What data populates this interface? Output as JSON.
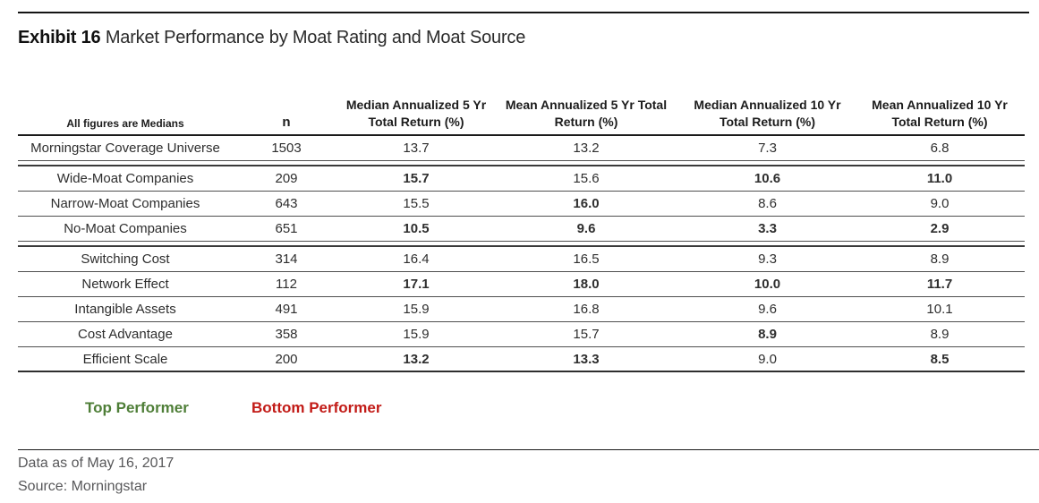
{
  "title": {
    "exhibit_label": "Exhibit 16",
    "text": " Market Performance by Moat Rating and Moat Source"
  },
  "colors": {
    "top_performer_green": "#4E7E37",
    "bottom_performer_red": "#C21B17"
  },
  "table": {
    "corner_note": "All figures are Medians",
    "n_header": "n",
    "columns": [
      {
        "l1": "Median Annualized 5 Yr",
        "l2": "Total Return (%)"
      },
      {
        "l1": "Mean Annualized 5 Yr Total",
        "l2": "Return (%)"
      },
      {
        "l1": "Median Annualized 10 Yr",
        "l2": "Total Return (%)"
      },
      {
        "l1": "Mean Annualized 10 Yr",
        "l2": "Total Return (%)"
      }
    ],
    "rows": [
      {
        "label": "Morningstar Coverage Universe",
        "n": "1503",
        "values": [
          {
            "v": "13.7",
            "hl": ""
          },
          {
            "v": "13.2",
            "hl": ""
          },
          {
            "v": "7.3",
            "hl": ""
          },
          {
            "v": "6.8",
            "hl": ""
          }
        ]
      },
      {
        "label": "Wide-Moat Companies",
        "n": "209",
        "values": [
          {
            "v": "15.7",
            "hl": "top"
          },
          {
            "v": "15.6",
            "hl": ""
          },
          {
            "v": "10.6",
            "hl": "top"
          },
          {
            "v": "11.0",
            "hl": "top"
          }
        ]
      },
      {
        "label": "Narrow-Moat Companies",
        "n": "643",
        "values": [
          {
            "v": "15.5",
            "hl": ""
          },
          {
            "v": "16.0",
            "hl": "top"
          },
          {
            "v": "8.6",
            "hl": ""
          },
          {
            "v": "9.0",
            "hl": ""
          }
        ]
      },
      {
        "label": "No-Moat Companies",
        "n": "651",
        "values": [
          {
            "v": "10.5",
            "hl": "bottom"
          },
          {
            "v": "9.6",
            "hl": "bottom"
          },
          {
            "v": "3.3",
            "hl": "bottom"
          },
          {
            "v": "2.9",
            "hl": "bottom"
          }
        ]
      },
      {
        "label": "Switching Cost",
        "n": "314",
        "values": [
          {
            "v": "16.4",
            "hl": ""
          },
          {
            "v": "16.5",
            "hl": ""
          },
          {
            "v": "9.3",
            "hl": ""
          },
          {
            "v": "8.9",
            "hl": ""
          }
        ]
      },
      {
        "label": "Network Effect",
        "n": "112",
        "values": [
          {
            "v": "17.1",
            "hl": "top"
          },
          {
            "v": "18.0",
            "hl": "top"
          },
          {
            "v": "10.0",
            "hl": "top"
          },
          {
            "v": "11.7",
            "hl": "top"
          }
        ]
      },
      {
        "label": "Intangible Assets",
        "n": "491",
        "values": [
          {
            "v": "15.9",
            "hl": ""
          },
          {
            "v": "16.8",
            "hl": ""
          },
          {
            "v": "9.6",
            "hl": ""
          },
          {
            "v": "10.1",
            "hl": ""
          }
        ]
      },
      {
        "label": "Cost Advantage",
        "n": "358",
        "values": [
          {
            "v": "15.9",
            "hl": ""
          },
          {
            "v": "15.7",
            "hl": ""
          },
          {
            "v": "8.9",
            "hl": "bottom"
          },
          {
            "v": "8.9",
            "hl": ""
          }
        ]
      },
      {
        "label": "Efficient Scale",
        "n": "200",
        "values": [
          {
            "v": "13.2",
            "hl": "bottom"
          },
          {
            "v": "13.3",
            "hl": "bottom"
          },
          {
            "v": "9.0",
            "hl": ""
          },
          {
            "v": "8.5",
            "hl": "bottom"
          }
        ]
      }
    ]
  },
  "legend": {
    "top_performer": "Top Performer",
    "bottom_performer": "Bottom Performer"
  },
  "footer": {
    "data_as_of": "Data as of May 16, 2017",
    "source": "Source: Morningstar"
  }
}
